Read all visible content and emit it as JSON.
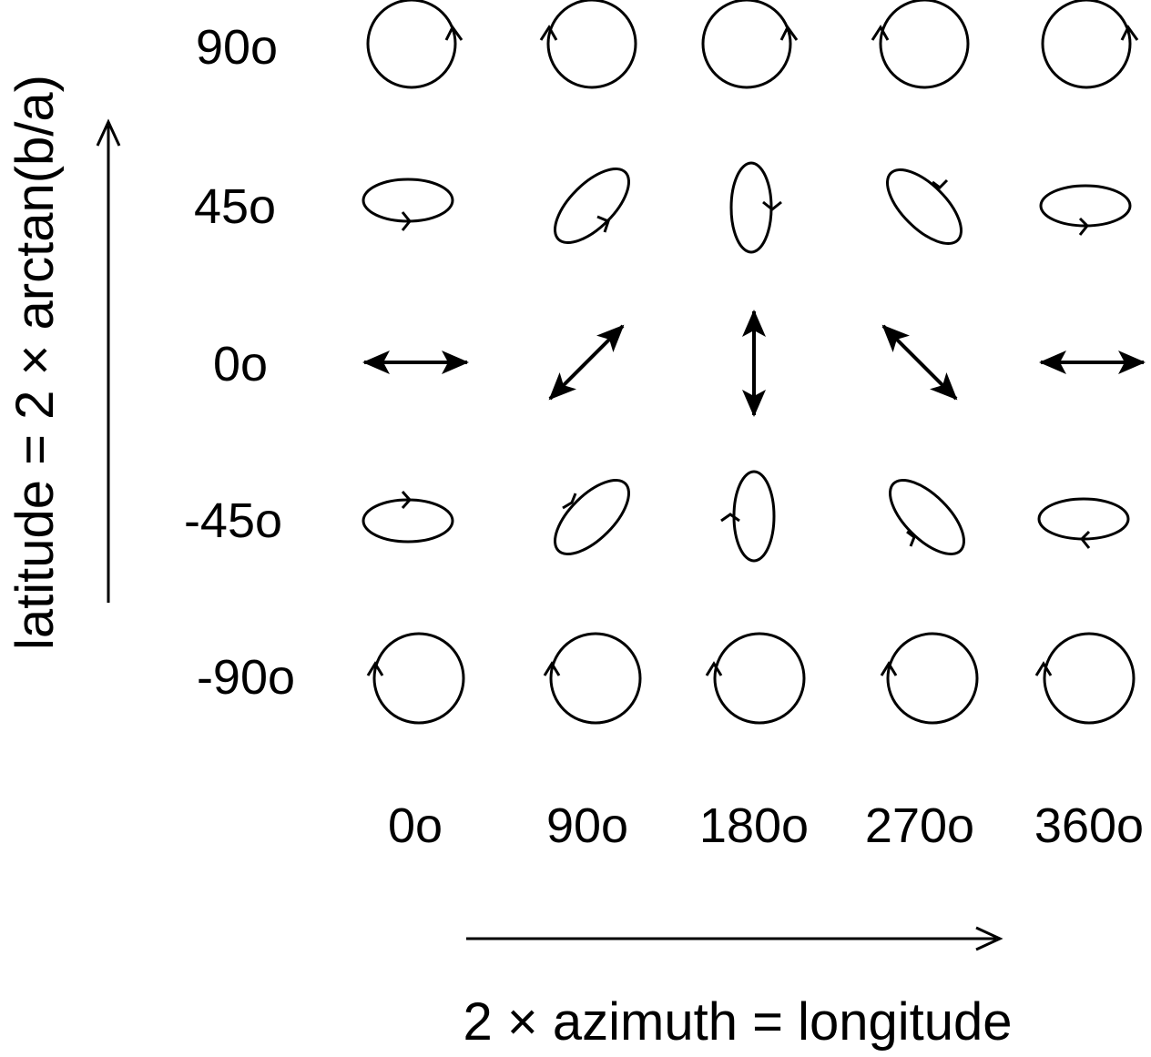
{
  "figure": {
    "y_axis_title": "latitude = 2 × arctan(b/a)",
    "x_axis_title": "2 × azimuth = longitude",
    "stroke_color": "#000000",
    "background_color": "#ffffff"
  },
  "rows": [
    {
      "label": "90o",
      "latitude_deg": 90
    },
    {
      "label": "45o",
      "latitude_deg": 45
    },
    {
      "label": "0o",
      "latitude_deg": 0
    },
    {
      "label": "-45o",
      "latitude_deg": -45
    },
    {
      "label": "-90o",
      "latitude_deg": -90
    }
  ],
  "columns": [
    {
      "label": "0o",
      "longitude_deg": 0
    },
    {
      "label": "90o",
      "longitude_deg": 90
    },
    {
      "label": "180o",
      "longitude_deg": 180
    },
    {
      "label": "270o",
      "longitude_deg": 270
    },
    {
      "label": "360o",
      "longitude_deg": 360
    }
  ]
}
